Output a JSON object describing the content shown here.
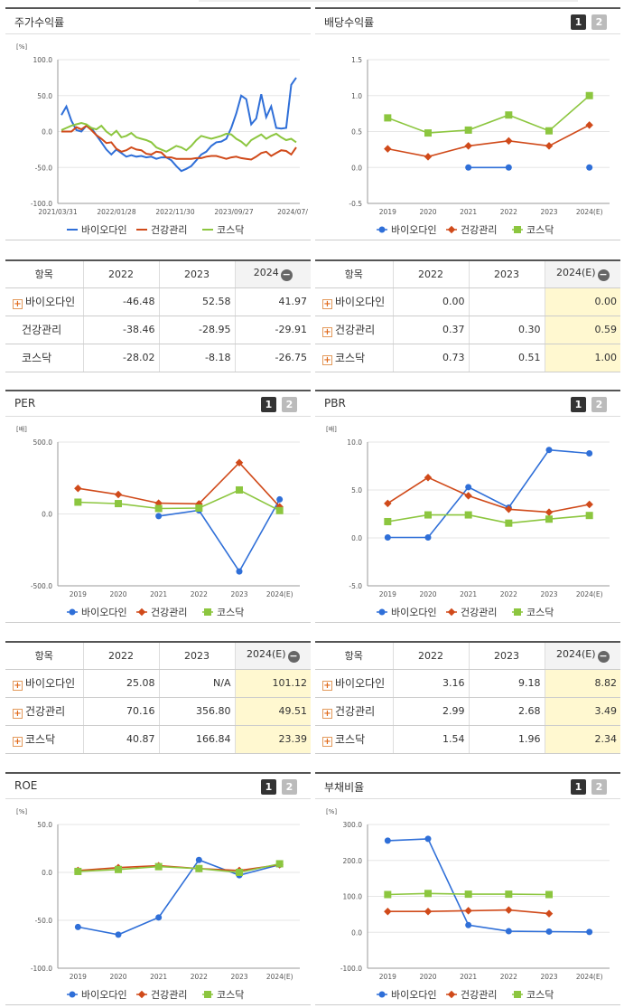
{
  "colors": {
    "series1": "#2f6fd8",
    "series2": "#d04a1a",
    "series3": "#8cc63f"
  },
  "legend": [
    "바이오다인",
    "건강관리",
    "코스닥"
  ],
  "buttons": {
    "one": "1",
    "two": "2"
  },
  "panels": {
    "stock": {
      "title": "주가수익률",
      "unit": "[%]"
    },
    "dividend": {
      "title": "배당수익률",
      "unit": ""
    },
    "per": {
      "title": "PER",
      "unit": "[배]"
    },
    "pbr": {
      "title": "PBR",
      "unit": "[배]"
    },
    "roe": {
      "title": "ROE",
      "unit": "[%]"
    },
    "debt": {
      "title": "부채비율",
      "unit": "[%]"
    }
  },
  "chart_data": [
    {
      "id": "stock",
      "type": "line",
      "title": "주가수익률",
      "ylabel": "[%]",
      "ylim": [
        -100,
        100
      ],
      "yticks": [
        "100.0",
        "50.0",
        "0.0",
        "-50.0",
        "-100.0"
      ],
      "xticks": [
        "2021/03/31",
        "2022/01/28",
        "2022/11/30",
        "2023/09/27",
        "2024/07/"
      ],
      "series": [
        {
          "name": "바이오다인",
          "values": [
            23,
            35,
            15,
            2,
            0,
            8,
            5,
            -5,
            -15,
            -25,
            -32,
            -25,
            -30,
            -35,
            -33,
            -35,
            -34,
            -36,
            -35,
            -38,
            -36,
            -36,
            -40,
            -48,
            -55,
            -52,
            -48,
            -40,
            -32,
            -28,
            -20,
            -15,
            -14,
            -10,
            5,
            25,
            50,
            45,
            10,
            18,
            52,
            20,
            35,
            5,
            4,
            5,
            65,
            75
          ]
        },
        {
          "name": "건강관리",
          "values": [
            0,
            0,
            0,
            6,
            3,
            8,
            2,
            -5,
            -10,
            -16,
            -15,
            -24,
            -28,
            -26,
            -22,
            -25,
            -26,
            -31,
            -32,
            -28,
            -29,
            -36,
            -36,
            -38,
            -38,
            -38,
            -38,
            -37,
            -37,
            -35,
            -34,
            -34,
            -36,
            -38,
            -36,
            -35,
            -37,
            -38,
            -39,
            -35,
            -30,
            -28,
            -34,
            -30,
            -26,
            -27,
            -32,
            -22
          ]
        },
        {
          "name": "코스닥",
          "values": [
            2,
            5,
            8,
            10,
            12,
            10,
            5,
            3,
            8,
            0,
            -5,
            1,
            -8,
            -6,
            -2,
            -8,
            -10,
            -12,
            -15,
            -22,
            -25,
            -28,
            -24,
            -20,
            -22,
            -26,
            -20,
            -12,
            -6,
            -8,
            -10,
            -8,
            -6,
            -3,
            -4,
            -10,
            -14,
            -20,
            -12,
            -8,
            -4,
            -10,
            -6,
            -3,
            -8,
            -12,
            -10,
            -15
          ]
        }
      ]
    },
    {
      "id": "dividend",
      "type": "line",
      "title": "배당수익률",
      "ylim": [
        -0.5,
        1.5
      ],
      "yticks": [
        "1.5",
        "1.0",
        "0.5",
        "0.0",
        "-0.5"
      ],
      "categories": [
        "2019",
        "2020",
        "2021",
        "2022",
        "2023",
        "2024(E)"
      ],
      "series": [
        {
          "name": "바이오다인",
          "values": [
            null,
            null,
            0.0,
            0.0,
            null,
            0.0
          ]
        },
        {
          "name": "건강관리",
          "values": [
            0.26,
            0.15,
            0.3,
            0.37,
            0.3,
            0.59
          ]
        },
        {
          "name": "코스닥",
          "values": [
            0.69,
            0.48,
            0.52,
            0.73,
            0.51,
            1.0
          ]
        }
      ]
    },
    {
      "id": "per",
      "type": "line",
      "title": "PER",
      "ylabel": "[배]",
      "ylim": [
        -500,
        500
      ],
      "yticks": [
        "500.0",
        "0.0",
        "-500.0"
      ],
      "categories": [
        "2019",
        "2020",
        "2021",
        "2022",
        "2023",
        "2024(E)"
      ],
      "series": [
        {
          "name": "바이오다인",
          "values": [
            null,
            null,
            -15,
            25.08,
            -400,
            101.12
          ]
        },
        {
          "name": "건강관리",
          "values": [
            178,
            135,
            75,
            70.16,
            356.8,
            49.51
          ]
        },
        {
          "name": "코스닥",
          "values": [
            82,
            72,
            38,
            40.87,
            166.84,
            23.39
          ]
        }
      ]
    },
    {
      "id": "pbr",
      "type": "line",
      "title": "PBR",
      "ylabel": "[배]",
      "ylim": [
        -5,
        10
      ],
      "yticks": [
        "10.0",
        "5.0",
        "0.0",
        "-5.0"
      ],
      "categories": [
        "2019",
        "2020",
        "2021",
        "2022",
        "2023",
        "2024(E)"
      ],
      "series": [
        {
          "name": "바이오다인",
          "values": [
            0.05,
            0.05,
            5.3,
            3.16,
            9.18,
            8.82
          ]
        },
        {
          "name": "건강관리",
          "values": [
            3.6,
            6.3,
            4.4,
            2.99,
            2.68,
            3.49
          ]
        },
        {
          "name": "코스닥",
          "values": [
            1.7,
            2.4,
            2.4,
            1.54,
            1.96,
            2.34
          ]
        }
      ]
    },
    {
      "id": "roe",
      "type": "line",
      "title": "ROE",
      "ylabel": "[%]",
      "ylim": [
        -100,
        50
      ],
      "yticks": [
        "50.0",
        "0.0",
        "-50.0",
        "-100.0"
      ],
      "categories": [
        "2019",
        "2020",
        "2021",
        "2022",
        "2023",
        "2024(E)"
      ],
      "series": [
        {
          "name": "바이오다인",
          "values": [
            -57,
            -65,
            -47,
            13,
            -3,
            8
          ]
        },
        {
          "name": "건강관리",
          "values": [
            2,
            5,
            7,
            4,
            2,
            8
          ]
        },
        {
          "name": "코스닥",
          "values": [
            1,
            3,
            6,
            4,
            0,
            9
          ]
        }
      ]
    },
    {
      "id": "debt",
      "type": "line",
      "title": "부채비율",
      "ylabel": "[%]",
      "ylim": [
        -100,
        300
      ],
      "yticks": [
        "300.0",
        "200.0",
        "100.0",
        "0.0",
        "-100.0"
      ],
      "categories": [
        "2019",
        "2020",
        "2021",
        "2022",
        "2023",
        "2024(E)"
      ],
      "series": [
        {
          "name": "바이오다인",
          "values": [
            255,
            260,
            20,
            3,
            2,
            1
          ]
        },
        {
          "name": "건강관리",
          "values": [
            58,
            58,
            60,
            62,
            52,
            null
          ]
        },
        {
          "name": "코스닥",
          "values": [
            105,
            108,
            106,
            106,
            105,
            null
          ]
        }
      ]
    }
  ],
  "tables": {
    "stock": {
      "headers": [
        "항목",
        "2022",
        "2023",
        "2024"
      ],
      "rows": [
        {
          "name": "바이오다인",
          "plus": true,
          "values": [
            "-46.48",
            "52.58",
            "41.97"
          ]
        },
        {
          "name": "건강관리",
          "plus": false,
          "values": [
            "-38.46",
            "-28.95",
            "-29.91"
          ]
        },
        {
          "name": "코스닥",
          "plus": false,
          "values": [
            "-28.02",
            "-8.18",
            "-26.75"
          ]
        }
      ]
    },
    "dividend": {
      "headers": [
        "항목",
        "2022",
        "2023",
        "2024(E)"
      ],
      "rows": [
        {
          "name": "바이오다인",
          "plus": true,
          "values": [
            "0.00",
            "",
            "0.00"
          ]
        },
        {
          "name": "건강관리",
          "plus": true,
          "values": [
            "0.37",
            "0.30",
            "0.59"
          ]
        },
        {
          "name": "코스닥",
          "plus": true,
          "values": [
            "0.73",
            "0.51",
            "1.00"
          ]
        }
      ]
    },
    "per": {
      "headers": [
        "항목",
        "2022",
        "2023",
        "2024(E)"
      ],
      "rows": [
        {
          "name": "바이오다인",
          "plus": true,
          "values": [
            "25.08",
            "N/A",
            "101.12"
          ]
        },
        {
          "name": "건강관리",
          "plus": true,
          "values": [
            "70.16",
            "356.80",
            "49.51"
          ]
        },
        {
          "name": "코스닥",
          "plus": true,
          "values": [
            "40.87",
            "166.84",
            "23.39"
          ]
        }
      ]
    },
    "pbr": {
      "headers": [
        "항목",
        "2022",
        "2023",
        "2024(E)"
      ],
      "rows": [
        {
          "name": "바이오다인",
          "plus": true,
          "values": [
            "3.16",
            "9.18",
            "8.82"
          ]
        },
        {
          "name": "건강관리",
          "plus": true,
          "values": [
            "2.99",
            "2.68",
            "3.49"
          ]
        },
        {
          "name": "코스닥",
          "plus": true,
          "values": [
            "1.54",
            "1.96",
            "2.34"
          ]
        }
      ]
    }
  }
}
